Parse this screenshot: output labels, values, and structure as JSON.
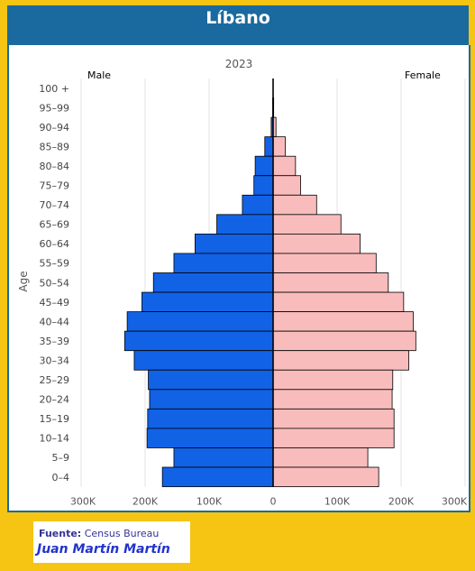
{
  "header": {
    "title": "Líbano"
  },
  "source": {
    "label": "Fuente:",
    "text": "Census Bureau",
    "author": "Juan Martín Martín"
  },
  "chart_data": {
    "type": "bar",
    "orientation": "horizontal-population-pyramid",
    "subtitle": "2023",
    "ylabel": "Age",
    "left_label": "Male",
    "right_label": "Female",
    "categories": [
      "100 +",
      "95–99",
      "90–94",
      "85–89",
      "80–84",
      "75–79",
      "70–74",
      "65–69",
      "60–64",
      "55–59",
      "50–54",
      "45–49",
      "40–44",
      "35–39",
      "30–34",
      "25–29",
      "20–24",
      "15–19",
      "10–14",
      "5–9",
      "0–4"
    ],
    "series": [
      {
        "name": "Male",
        "color": "#1262e6",
        "values": [
          0,
          700,
          3000,
          13000,
          28000,
          30000,
          48000,
          88000,
          122000,
          155000,
          187000,
          205000,
          228000,
          232000,
          217000,
          195000,
          193000,
          196000,
          197000,
          155000,
          173000
        ]
      },
      {
        "name": "Female",
        "color": "#f9bcbc",
        "values": [
          0,
          900,
          4500,
          19000,
          35000,
          43000,
          68000,
          106000,
          136000,
          161000,
          180000,
          204000,
          219000,
          223000,
          212000,
          187000,
          186000,
          189000,
          189000,
          148000,
          165000
        ]
      }
    ],
    "xticks": [
      "300K",
      "200K",
      "100K",
      "0",
      "100K",
      "200K",
      "300K"
    ],
    "xlim": [
      -300000,
      300000
    ],
    "grid": true
  }
}
